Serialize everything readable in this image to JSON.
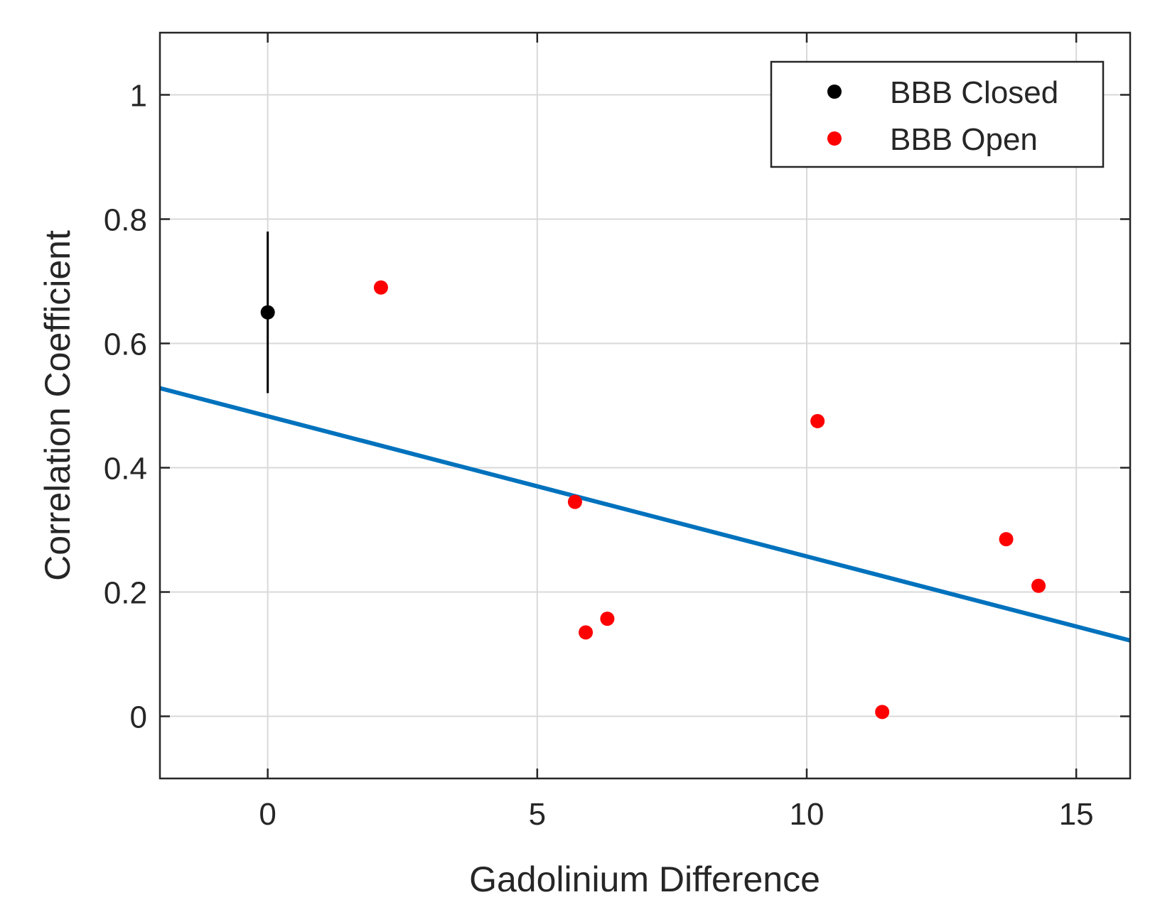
{
  "chart_data": {
    "type": "scatter",
    "title": "",
    "xlabel": "Gadolinium Difference",
    "ylabel": "Correlation Coefficient",
    "xlim": [
      -2,
      16
    ],
    "ylim": [
      -0.1,
      1.1
    ],
    "xticks": [
      0,
      5,
      10,
      15
    ],
    "yticks": [
      0,
      0.2,
      0.4,
      0.6,
      0.8,
      1
    ],
    "xtick_labels": [
      "0",
      "5",
      "10",
      "15"
    ],
    "ytick_labels": [
      "0",
      "0.2",
      "0.4",
      "0.6",
      "0.8",
      "1"
    ],
    "grid": true,
    "legend_position": "top-right",
    "series": [
      {
        "name": "BBB Closed",
        "color": "#000000",
        "x": [
          0
        ],
        "y": [
          0.65
        ],
        "error_low": [
          0.52
        ],
        "error_high": [
          0.78
        ]
      },
      {
        "name": "BBB Open",
        "color": "#ff0000",
        "x": [
          2.1,
          5.7,
          5.9,
          6.3,
          10.2,
          11.4,
          13.7,
          14.3
        ],
        "y": [
          0.69,
          0.345,
          0.135,
          0.157,
          0.475,
          0.007,
          0.285,
          0.21
        ]
      }
    ],
    "fit_line": {
      "color": "#0072bd",
      "x": [
        -2,
        16
      ],
      "y": [
        0.528,
        0.122
      ]
    }
  }
}
